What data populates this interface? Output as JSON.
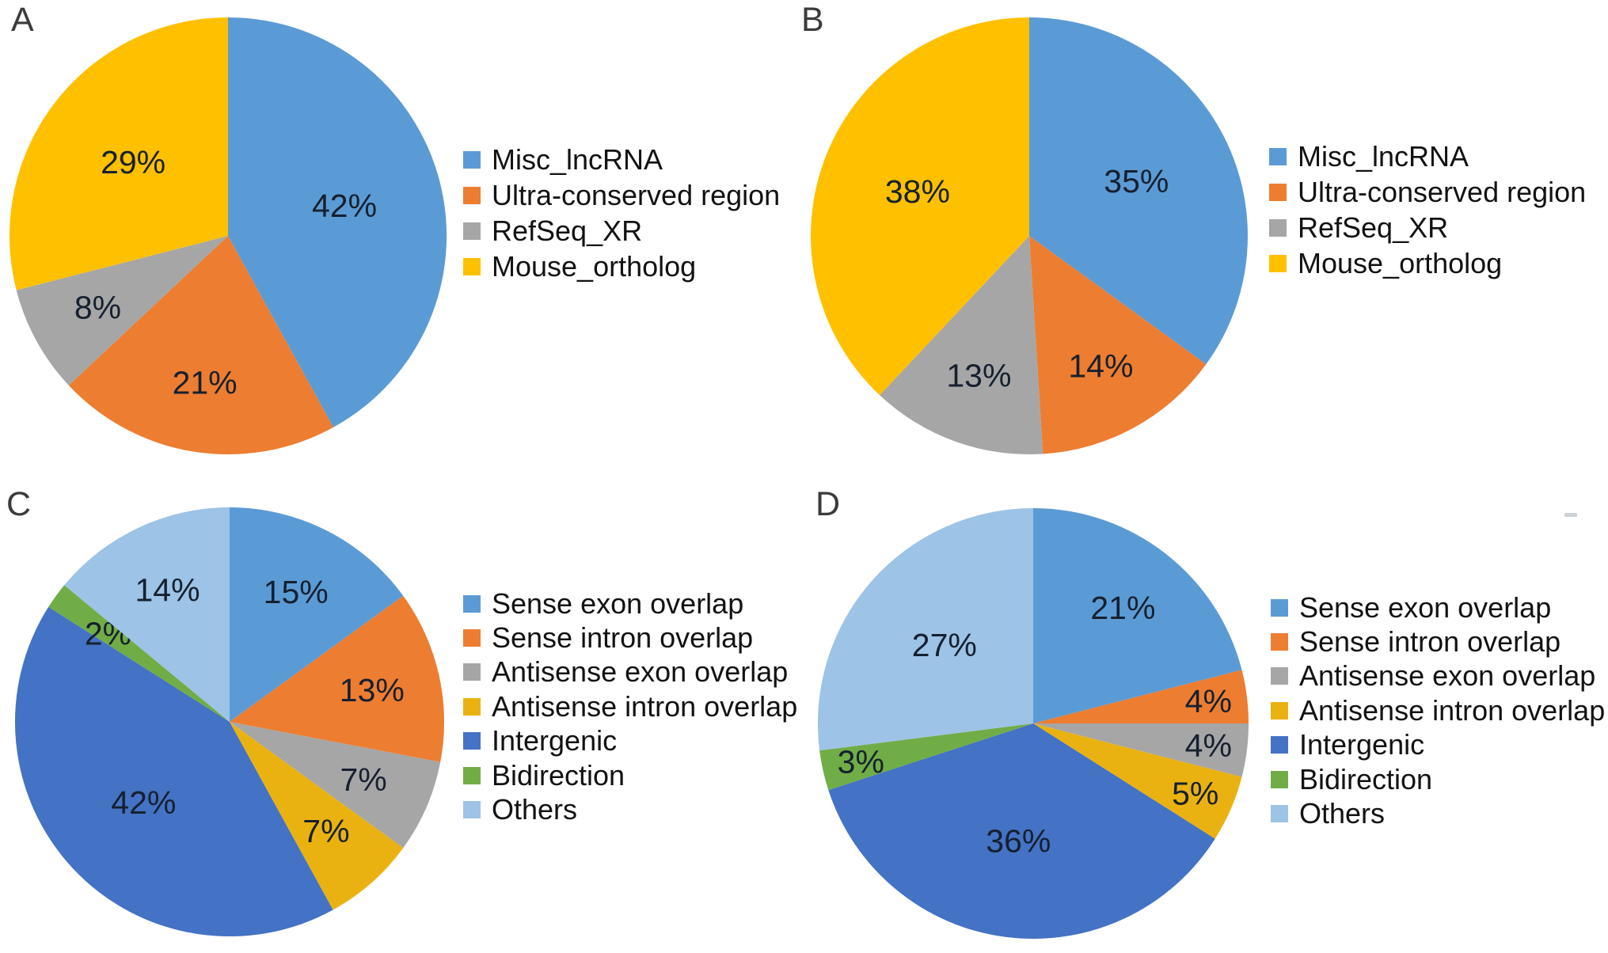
{
  "figure": {
    "background": "#ffffff",
    "panel_letters": {
      "a": "A",
      "b": "B",
      "c": "C",
      "d": "D"
    }
  },
  "chart_data": [
    {
      "type": "pie",
      "panel": "A",
      "title": "",
      "categories": [
        "Misc_lncRNA",
        "Ultra-conserved region",
        "RefSeq_XR",
        "Mouse_ortholog"
      ],
      "values": [
        42,
        21,
        8,
        29
      ],
      "labels": [
        "42%",
        "21%",
        "8%",
        "29%"
      ],
      "colors": [
        "#5B9BD5",
        "#ED7D31",
        "#A6A6A6",
        "#FFC000"
      ],
      "legend_position": "right",
      "start_angle_deg": 0,
      "direction": "clockwise"
    },
    {
      "type": "pie",
      "panel": "B",
      "title": "",
      "categories": [
        "Misc_lncRNA",
        "Ultra-conserved region",
        "RefSeq_XR",
        "Mouse_ortholog"
      ],
      "values": [
        35,
        14,
        13,
        38
      ],
      "labels": [
        "35%",
        "14%",
        "13%",
        "38%"
      ],
      "colors": [
        "#5B9BD5",
        "#ED7D31",
        "#A6A6A6",
        "#FFC000"
      ],
      "legend_position": "right",
      "start_angle_deg": 0,
      "direction": "clockwise"
    },
    {
      "type": "pie",
      "panel": "C",
      "title": "",
      "categories": [
        "Sense exon overlap",
        "Sense intron overlap",
        "Antisense exon overlap",
        "Antisense intron overlap",
        "Intergenic",
        "Bidirection",
        "Others"
      ],
      "values": [
        15,
        13,
        7,
        7,
        42,
        2,
        14
      ],
      "labels": [
        "15%",
        "13%",
        "7%",
        "7%",
        "42%",
        "2%",
        "14%"
      ],
      "colors": [
        "#5B9BD5",
        "#ED7D31",
        "#A6A6A6",
        "#EAB211",
        "#4472C4",
        "#70AD47",
        "#9DC3E6"
      ],
      "legend_position": "right",
      "start_angle_deg": 0,
      "direction": "clockwise"
    },
    {
      "type": "pie",
      "panel": "D",
      "title": "",
      "categories": [
        "Sense exon overlap",
        "Sense intron overlap",
        "Antisense exon overlap",
        "Antisense intron overlap",
        "Intergenic",
        "Bidirection",
        "Others"
      ],
      "values": [
        21,
        4,
        4,
        5,
        36,
        3,
        27
      ],
      "labels": [
        "21%",
        "4%",
        "4%",
        "5%",
        "36%",
        "3%",
        "27%"
      ],
      "colors": [
        "#5B9BD5",
        "#ED7D31",
        "#A6A6A6",
        "#EAB211",
        "#4472C4",
        "#70AD47",
        "#9DC3E6"
      ],
      "legend_position": "right",
      "start_angle_deg": 0,
      "direction": "clockwise"
    }
  ]
}
